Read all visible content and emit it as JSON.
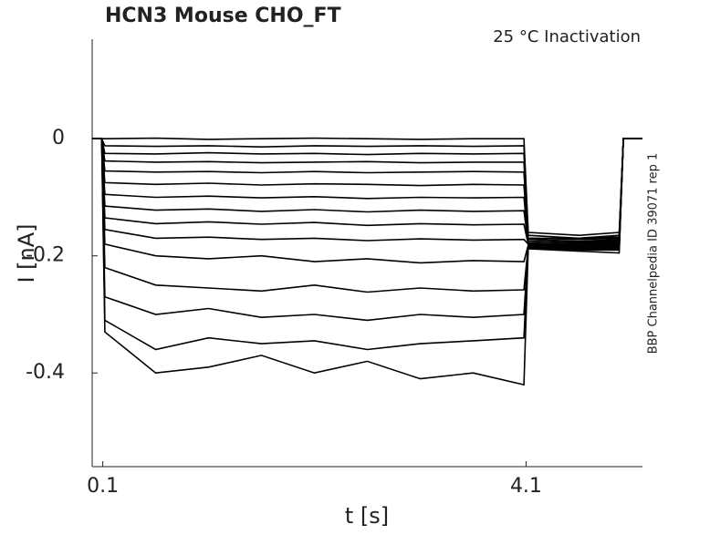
{
  "chart_data": {
    "type": "line",
    "title": "HCN3  Mouse  CHO_FT",
    "annotation": "25 °C  Inactivation",
    "side_note": "BBP Channelpedia ID 39071 rep 1",
    "xlabel": "t [s]",
    "ylabel": "I [nA]",
    "xlim": [
      0,
      5.2
    ],
    "ylim": [
      -0.56,
      0.17
    ],
    "xticks": [
      0.1,
      4.1
    ],
    "yticks": [
      0,
      -0.2,
      -0.4
    ],
    "color": "#000000",
    "x": [
      0,
      0.09,
      0.12,
      0.6,
      1.1,
      1.6,
      2.1,
      2.6,
      3.1,
      3.6,
      4.08,
      4.12,
      4.6,
      4.98,
      5.02,
      5.2
    ],
    "series": [
      {
        "color": "#000000",
        "values": [
          0,
          0,
          0,
          0.001,
          -0.001,
          0,
          0.001,
          0,
          -0.001,
          0,
          0,
          -0.16,
          -0.165,
          -0.16,
          0,
          0
        ]
      },
      {
        "color": "#000000",
        "values": [
          0,
          0,
          -0.012,
          -0.013,
          -0.012,
          -0.014,
          -0.012,
          -0.013,
          -0.012,
          -0.013,
          -0.012,
          -0.165,
          -0.17,
          -0.165,
          0,
          0
        ]
      },
      {
        "color": "#000000",
        "values": [
          0,
          0,
          -0.025,
          -0.026,
          -0.024,
          -0.026,
          -0.025,
          -0.027,
          -0.025,
          -0.026,
          -0.025,
          -0.17,
          -0.17,
          -0.168,
          0,
          0
        ]
      },
      {
        "color": "#000000",
        "values": [
          0,
          0,
          -0.038,
          -0.04,
          -0.039,
          -0.041,
          -0.04,
          -0.039,
          -0.041,
          -0.04,
          -0.04,
          -0.17,
          -0.172,
          -0.17,
          0,
          0
        ]
      },
      {
        "color": "#000000",
        "values": [
          0,
          0,
          -0.055,
          -0.057,
          -0.056,
          -0.058,
          -0.056,
          -0.058,
          -0.057,
          -0.056,
          -0.057,
          -0.172,
          -0.175,
          -0.172,
          0,
          0
        ]
      },
      {
        "color": "#000000",
        "values": [
          0,
          0,
          -0.075,
          -0.078,
          -0.076,
          -0.079,
          -0.077,
          -0.078,
          -0.08,
          -0.078,
          -0.079,
          -0.175,
          -0.177,
          -0.174,
          0,
          0
        ]
      },
      {
        "color": "#000000",
        "values": [
          0,
          0,
          -0.095,
          -0.1,
          -0.098,
          -0.101,
          -0.099,
          -0.102,
          -0.1,
          -0.101,
          -0.1,
          -0.175,
          -0.178,
          -0.176,
          0,
          0
        ]
      },
      {
        "color": "#000000",
        "values": [
          0,
          0,
          -0.115,
          -0.122,
          -0.12,
          -0.124,
          -0.121,
          -0.125,
          -0.122,
          -0.124,
          -0.123,
          -0.178,
          -0.18,
          -0.178,
          0,
          0
        ]
      },
      {
        "color": "#000000",
        "values": [
          0,
          0,
          -0.135,
          -0.145,
          -0.142,
          -0.146,
          -0.143,
          -0.148,
          -0.145,
          -0.147,
          -0.146,
          -0.18,
          -0.182,
          -0.18,
          0,
          0
        ]
      },
      {
        "color": "#000000",
        "values": [
          0,
          0,
          -0.155,
          -0.17,
          -0.168,
          -0.172,
          -0.17,
          -0.174,
          -0.171,
          -0.173,
          -0.172,
          -0.18,
          -0.184,
          -0.182,
          0,
          0
        ]
      },
      {
        "color": "#000000",
        "values": [
          0,
          0,
          -0.18,
          -0.2,
          -0.205,
          -0.2,
          -0.21,
          -0.205,
          -0.212,
          -0.208,
          -0.21,
          -0.182,
          -0.186,
          -0.184,
          0,
          0
        ]
      },
      {
        "color": "#000000",
        "values": [
          0,
          0,
          -0.22,
          -0.25,
          -0.255,
          -0.26,
          -0.25,
          -0.262,
          -0.255,
          -0.26,
          -0.258,
          -0.183,
          -0.187,
          -0.186,
          0,
          0
        ]
      },
      {
        "color": "#000000",
        "values": [
          0,
          0,
          -0.27,
          -0.3,
          -0.29,
          -0.305,
          -0.3,
          -0.31,
          -0.3,
          -0.305,
          -0.3,
          -0.185,
          -0.188,
          -0.188,
          0,
          0
        ]
      },
      {
        "color": "#000000",
        "values": [
          0,
          0,
          -0.31,
          -0.36,
          -0.34,
          -0.35,
          -0.345,
          -0.36,
          -0.35,
          -0.345,
          -0.34,
          -0.186,
          -0.19,
          -0.19,
          0,
          0
        ]
      },
      {
        "color": "#000000",
        "values": [
          0,
          0,
          -0.33,
          -0.4,
          -0.39,
          -0.37,
          -0.4,
          -0.38,
          -0.41,
          -0.4,
          -0.42,
          -0.188,
          -0.192,
          -0.195,
          0,
          0
        ]
      }
    ]
  }
}
